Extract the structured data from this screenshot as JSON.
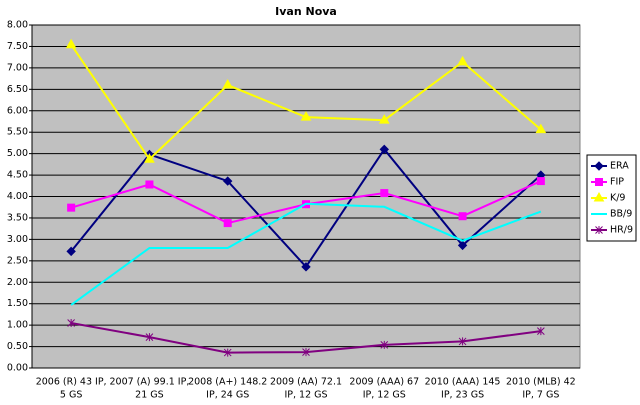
{
  "chart_data": {
    "type": "line",
    "title": "Ivan Nova",
    "categories": [
      [
        "2006 (R) 43 IP,",
        "5 GS"
      ],
      [
        "2007 (A) 99.1 IP,",
        "21 GS"
      ],
      [
        "2008 (A+) 148.2",
        "IP, 24 GS"
      ],
      [
        "2009 (AA) 72.1",
        "IP, 12 GS"
      ],
      [
        "2009 (AAA) 67",
        "IP, 12 GS"
      ],
      [
        "2010 (AAA) 145",
        "IP, 23 GS"
      ],
      [
        "2010 (MLB) 42",
        "IP, 7 GS"
      ]
    ],
    "series": [
      {
        "name": "ERA",
        "color": "#000080",
        "marker": "diamond",
        "values": [
          2.72,
          4.98,
          4.36,
          2.36,
          5.1,
          2.86,
          4.5
        ]
      },
      {
        "name": "FIP",
        "color": "#ff00ff",
        "marker": "square",
        "values": [
          3.74,
          4.28,
          3.38,
          3.82,
          4.08,
          3.54,
          4.36
        ]
      },
      {
        "name": "K/9",
        "color": "#ffff00",
        "marker": "triangle",
        "values": [
          7.54,
          4.87,
          6.6,
          5.85,
          5.78,
          7.14,
          5.56
        ]
      },
      {
        "name": "BB/9",
        "color": "#00ffff",
        "marker": "none",
        "values": [
          1.47,
          2.8,
          2.8,
          3.83,
          3.76,
          2.97,
          3.65
        ]
      },
      {
        "name": "HR/9",
        "color": "#800080",
        "marker": "star",
        "values": [
          1.05,
          0.72,
          0.36,
          0.37,
          0.54,
          0.62,
          0.86
        ]
      }
    ],
    "ylim": [
      0,
      8
    ],
    "yticks": [
      {
        "value": 0,
        "label": "0.00"
      },
      {
        "value": 0.5,
        "label": "0.50"
      },
      {
        "value": 1,
        "label": "1.00"
      },
      {
        "value": 1.5,
        "label": "1.50"
      },
      {
        "value": 2,
        "label": "2.00"
      },
      {
        "value": 2.5,
        "label": "2.50"
      },
      {
        "value": 3,
        "label": "3.00"
      },
      {
        "value": 3.5,
        "label": "3.50"
      },
      {
        "value": 4,
        "label": "4.00"
      },
      {
        "value": 4.5,
        "label": "4.50"
      },
      {
        "value": 5,
        "label": "5.00"
      },
      {
        "value": 5.5,
        "label": "5.50"
      },
      {
        "value": 6,
        "label": "6.00"
      },
      {
        "value": 6.5,
        "label": "6.50"
      },
      {
        "value": 7,
        "label": "7.00"
      },
      {
        "value": 7.5,
        "label": "7.50"
      },
      {
        "value": 8,
        "label": "8.00"
      }
    ],
    "grid": true,
    "legend": "right"
  }
}
